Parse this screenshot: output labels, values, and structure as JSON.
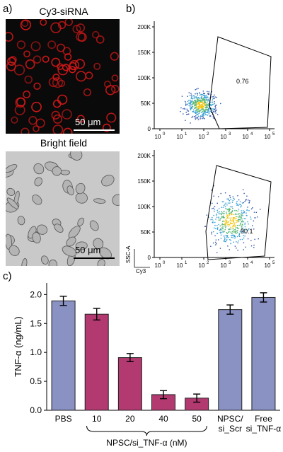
{
  "panel_a": {
    "letter": "a)",
    "top_title": "Cy3-siRNA",
    "bottom_title": "Bright field",
    "scale_top": "50 μm",
    "scale_bottom": "50 μm"
  },
  "panel_b": {
    "letter": "b)",
    "y_ticks": [
      "0",
      "50K",
      "100K",
      "150K",
      "200K"
    ],
    "x_ticks_base": "10",
    "x_ticks_exp": [
      "0",
      "1",
      "2",
      "3",
      "4",
      "5"
    ],
    "top_gate_value": "0.76",
    "bottom_gate_value": "90.1",
    "ylabel": "SSC-A",
    "xlabel": "Cy3"
  },
  "panel_c": {
    "letter": "c)"
  },
  "chart_data": {
    "type": "bar",
    "ylabel": "TNF-α (ng/mL)",
    "ylim": [
      0,
      2.2
    ],
    "y_ticks": [
      "0.0",
      "0.5",
      "1.0",
      "1.5",
      "2.0"
    ],
    "categories": [
      "PBS",
      "10",
      "20",
      "40",
      "50",
      "NPSC/\nsi_Scr",
      "Free\nsi_TNF-α"
    ],
    "values": [
      1.89,
      1.66,
      0.91,
      0.27,
      0.21,
      1.74,
      1.95
    ],
    "errors": [
      0.08,
      0.1,
      0.07,
      0.07,
      0.07,
      0.08,
      0.08
    ],
    "group_label": "NPSC/si_TNF-α (nM)",
    "colors": {
      "blue": "#8a92c4",
      "magenta": "#b23a70"
    },
    "bar_colors": [
      "blue",
      "magenta",
      "magenta",
      "magenta",
      "magenta",
      "blue",
      "blue"
    ]
  }
}
